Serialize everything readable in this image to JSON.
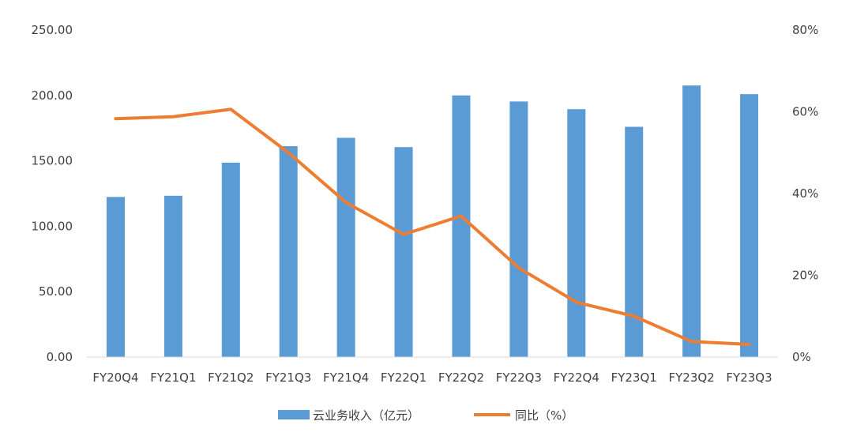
{
  "chart_data": {
    "type": "bar",
    "categories": [
      "FY20Q4",
      "FY21Q1",
      "FY21Q2",
      "FY21Q3",
      "FY21Q4",
      "FY22Q1",
      "FY22Q2",
      "FY22Q3",
      "FY22Q4",
      "FY23Q1",
      "FY23Q2",
      "FY23Q3"
    ],
    "series": [
      {
        "name": "云业务收入（亿元）",
        "type": "bar",
        "axis": "left",
        "color": "#5b9bd5",
        "values": [
          122.4,
          123.3,
          148.6,
          161.2,
          167.6,
          160.5,
          200.0,
          195.4,
          189.5,
          176.0,
          207.6,
          201.0
        ]
      },
      {
        "name": "同比（%）",
        "type": "line",
        "axis": "right",
        "color": "#ed7d31",
        "values": [
          58.3,
          58.8,
          60.6,
          50.0,
          37.8,
          30.0,
          34.5,
          21.8,
          13.4,
          10.0,
          3.8,
          3.1
        ]
      }
    ],
    "y_left": {
      "ylim": [
        0,
        250
      ],
      "ticks": [
        0,
        50,
        100,
        150,
        200,
        250
      ],
      "tick_labels": [
        "0.00",
        "50.00",
        "100.00",
        "150.00",
        "200.00",
        "250.00"
      ]
    },
    "y_right": {
      "ylim": [
        0,
        80
      ],
      "ticks": [
        0,
        20,
        40,
        60,
        80
      ],
      "tick_labels": [
        "0%",
        "20%",
        "40%",
        "60%",
        "80%"
      ]
    },
    "grid": false,
    "legend": {
      "placement": "bottom-center"
    }
  }
}
